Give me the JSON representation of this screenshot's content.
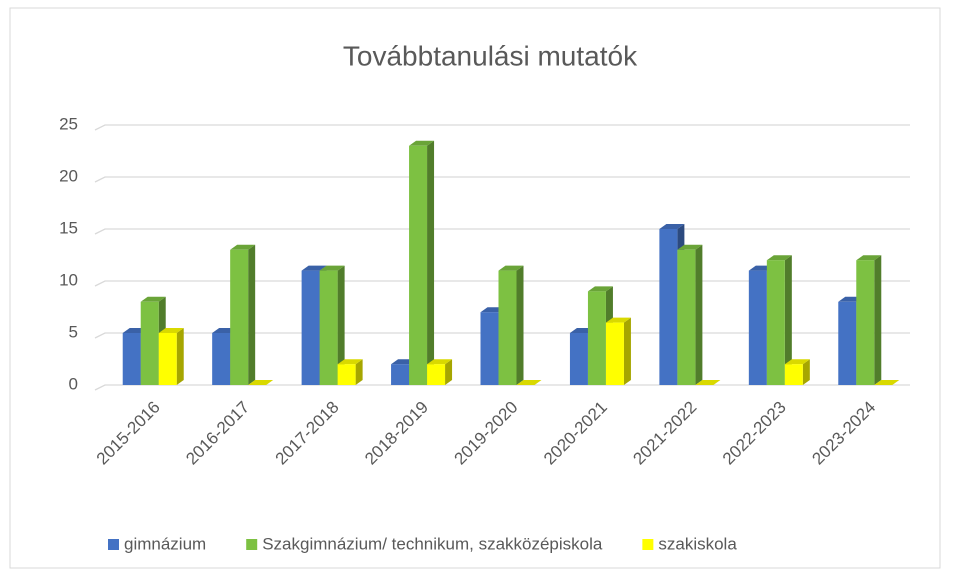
{
  "chart_data": {
    "type": "bar",
    "title": "Továbbtanulási mutatók",
    "categories": [
      "2015-2016",
      "2016-2017",
      "2017-2018",
      "2018-2019",
      "2019-2020",
      "2020-2021",
      "2021-2022",
      "2022-2023",
      "2023-2024"
    ],
    "series": [
      {
        "name": "gimnázium",
        "color": "#4472c4",
        "values": [
          5,
          5,
          11,
          2,
          7,
          5,
          15,
          11,
          8
        ]
      },
      {
        "name": "Szakgimnázium/ technikum, szakközépiskola",
        "color": "#7dc142",
        "values": [
          8,
          13,
          11,
          23,
          11,
          9,
          13,
          12,
          12
        ]
      },
      {
        "name": "szakiskola",
        "color": "#ffff00",
        "values": [
          5,
          0,
          2,
          2,
          0,
          6,
          0,
          2,
          0
        ]
      }
    ],
    "ylim": [
      0,
      25
    ],
    "yticks": [
      0,
      5,
      10,
      15,
      20,
      25
    ],
    "grid": true,
    "legend": "bottom"
  }
}
